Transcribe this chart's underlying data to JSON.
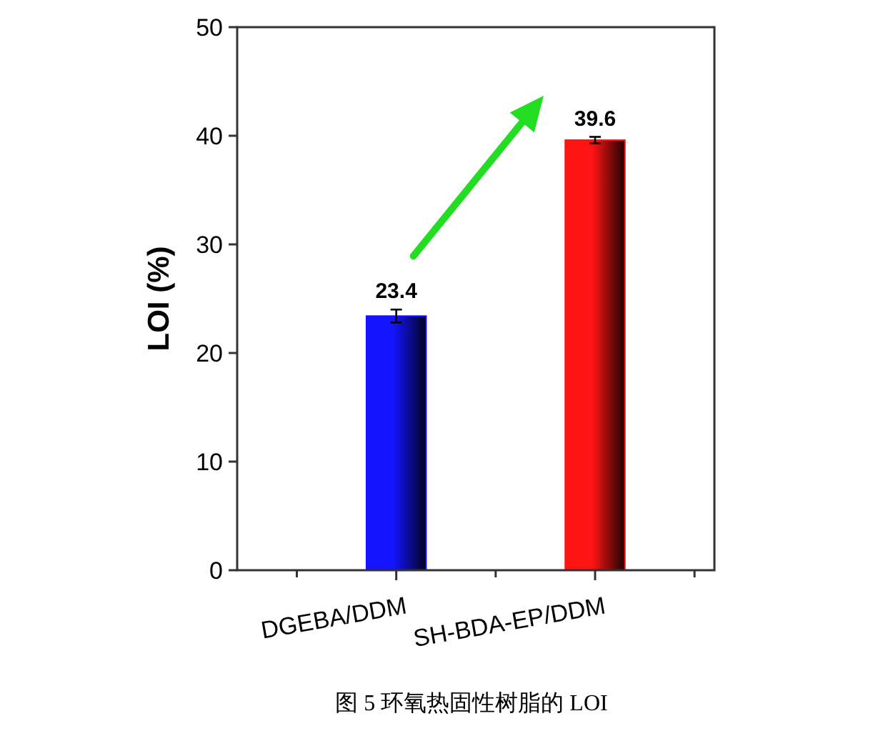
{
  "chart_data": {
    "type": "bar",
    "title": "图 5 环氧热固性树脂的 LOI",
    "ylabel": "LOI (%)",
    "categories": [
      "DGEBA/DDM",
      "SH-BDA-EP/DDM"
    ],
    "values": [
      23.4,
      39.6
    ],
    "errors": [
      0.6,
      0.3
    ],
    "colors": [
      "#1414ff",
      "#ff1414"
    ],
    "ylim": [
      0,
      50
    ],
    "yticks": [
      0,
      10,
      20,
      30,
      40,
      50
    ],
    "data_labels": true,
    "grid": false
  }
}
